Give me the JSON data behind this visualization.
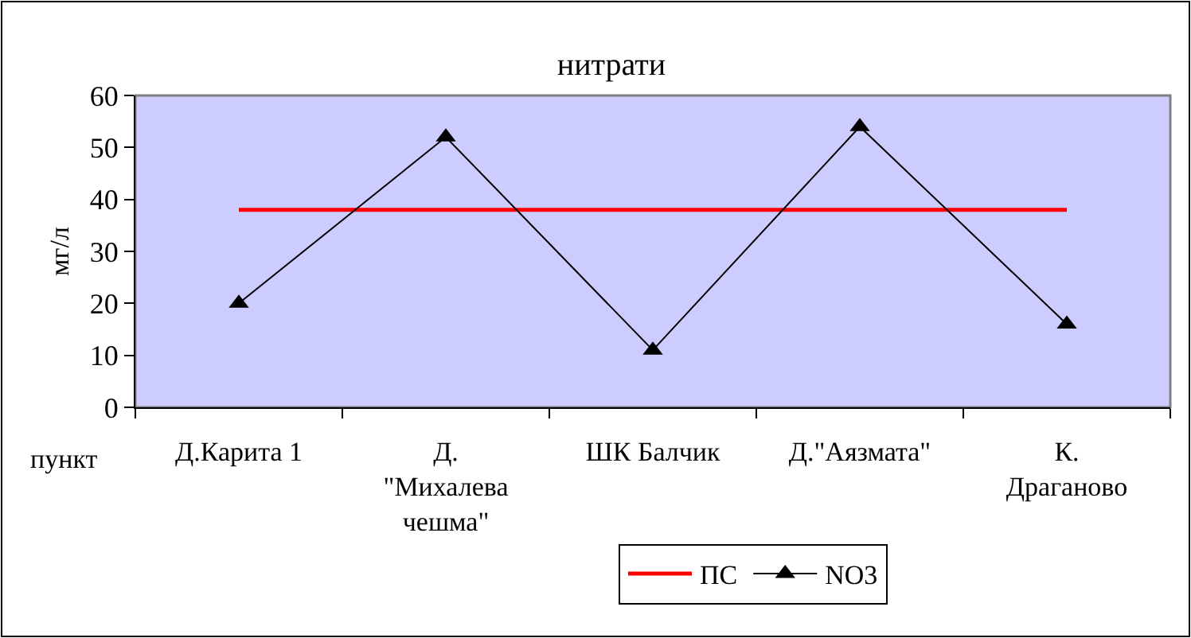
{
  "chart_data": {
    "type": "line",
    "title": "нитрати",
    "xlabel": "пункт",
    "ylabel": "мг/л",
    "categories": [
      "Д.Карита 1",
      "Д. \"Михалева чешма\"",
      "ШК Балчик",
      "Д.\"Аязмата\"",
      "К. Драганово"
    ],
    "series": [
      {
        "name": "ПС",
        "color": "#ff0000",
        "values": [
          38,
          38,
          38,
          38,
          38
        ],
        "marker": "none"
      },
      {
        "name": "NO3",
        "color": "#000000",
        "values": [
          20,
          52,
          11,
          54,
          16
        ],
        "marker": "triangle"
      }
    ],
    "ylim": [
      0,
      60
    ],
    "yticks": [
      0,
      10,
      20,
      30,
      40,
      50,
      60
    ],
    "grid": false,
    "legend": "bottom"
  }
}
